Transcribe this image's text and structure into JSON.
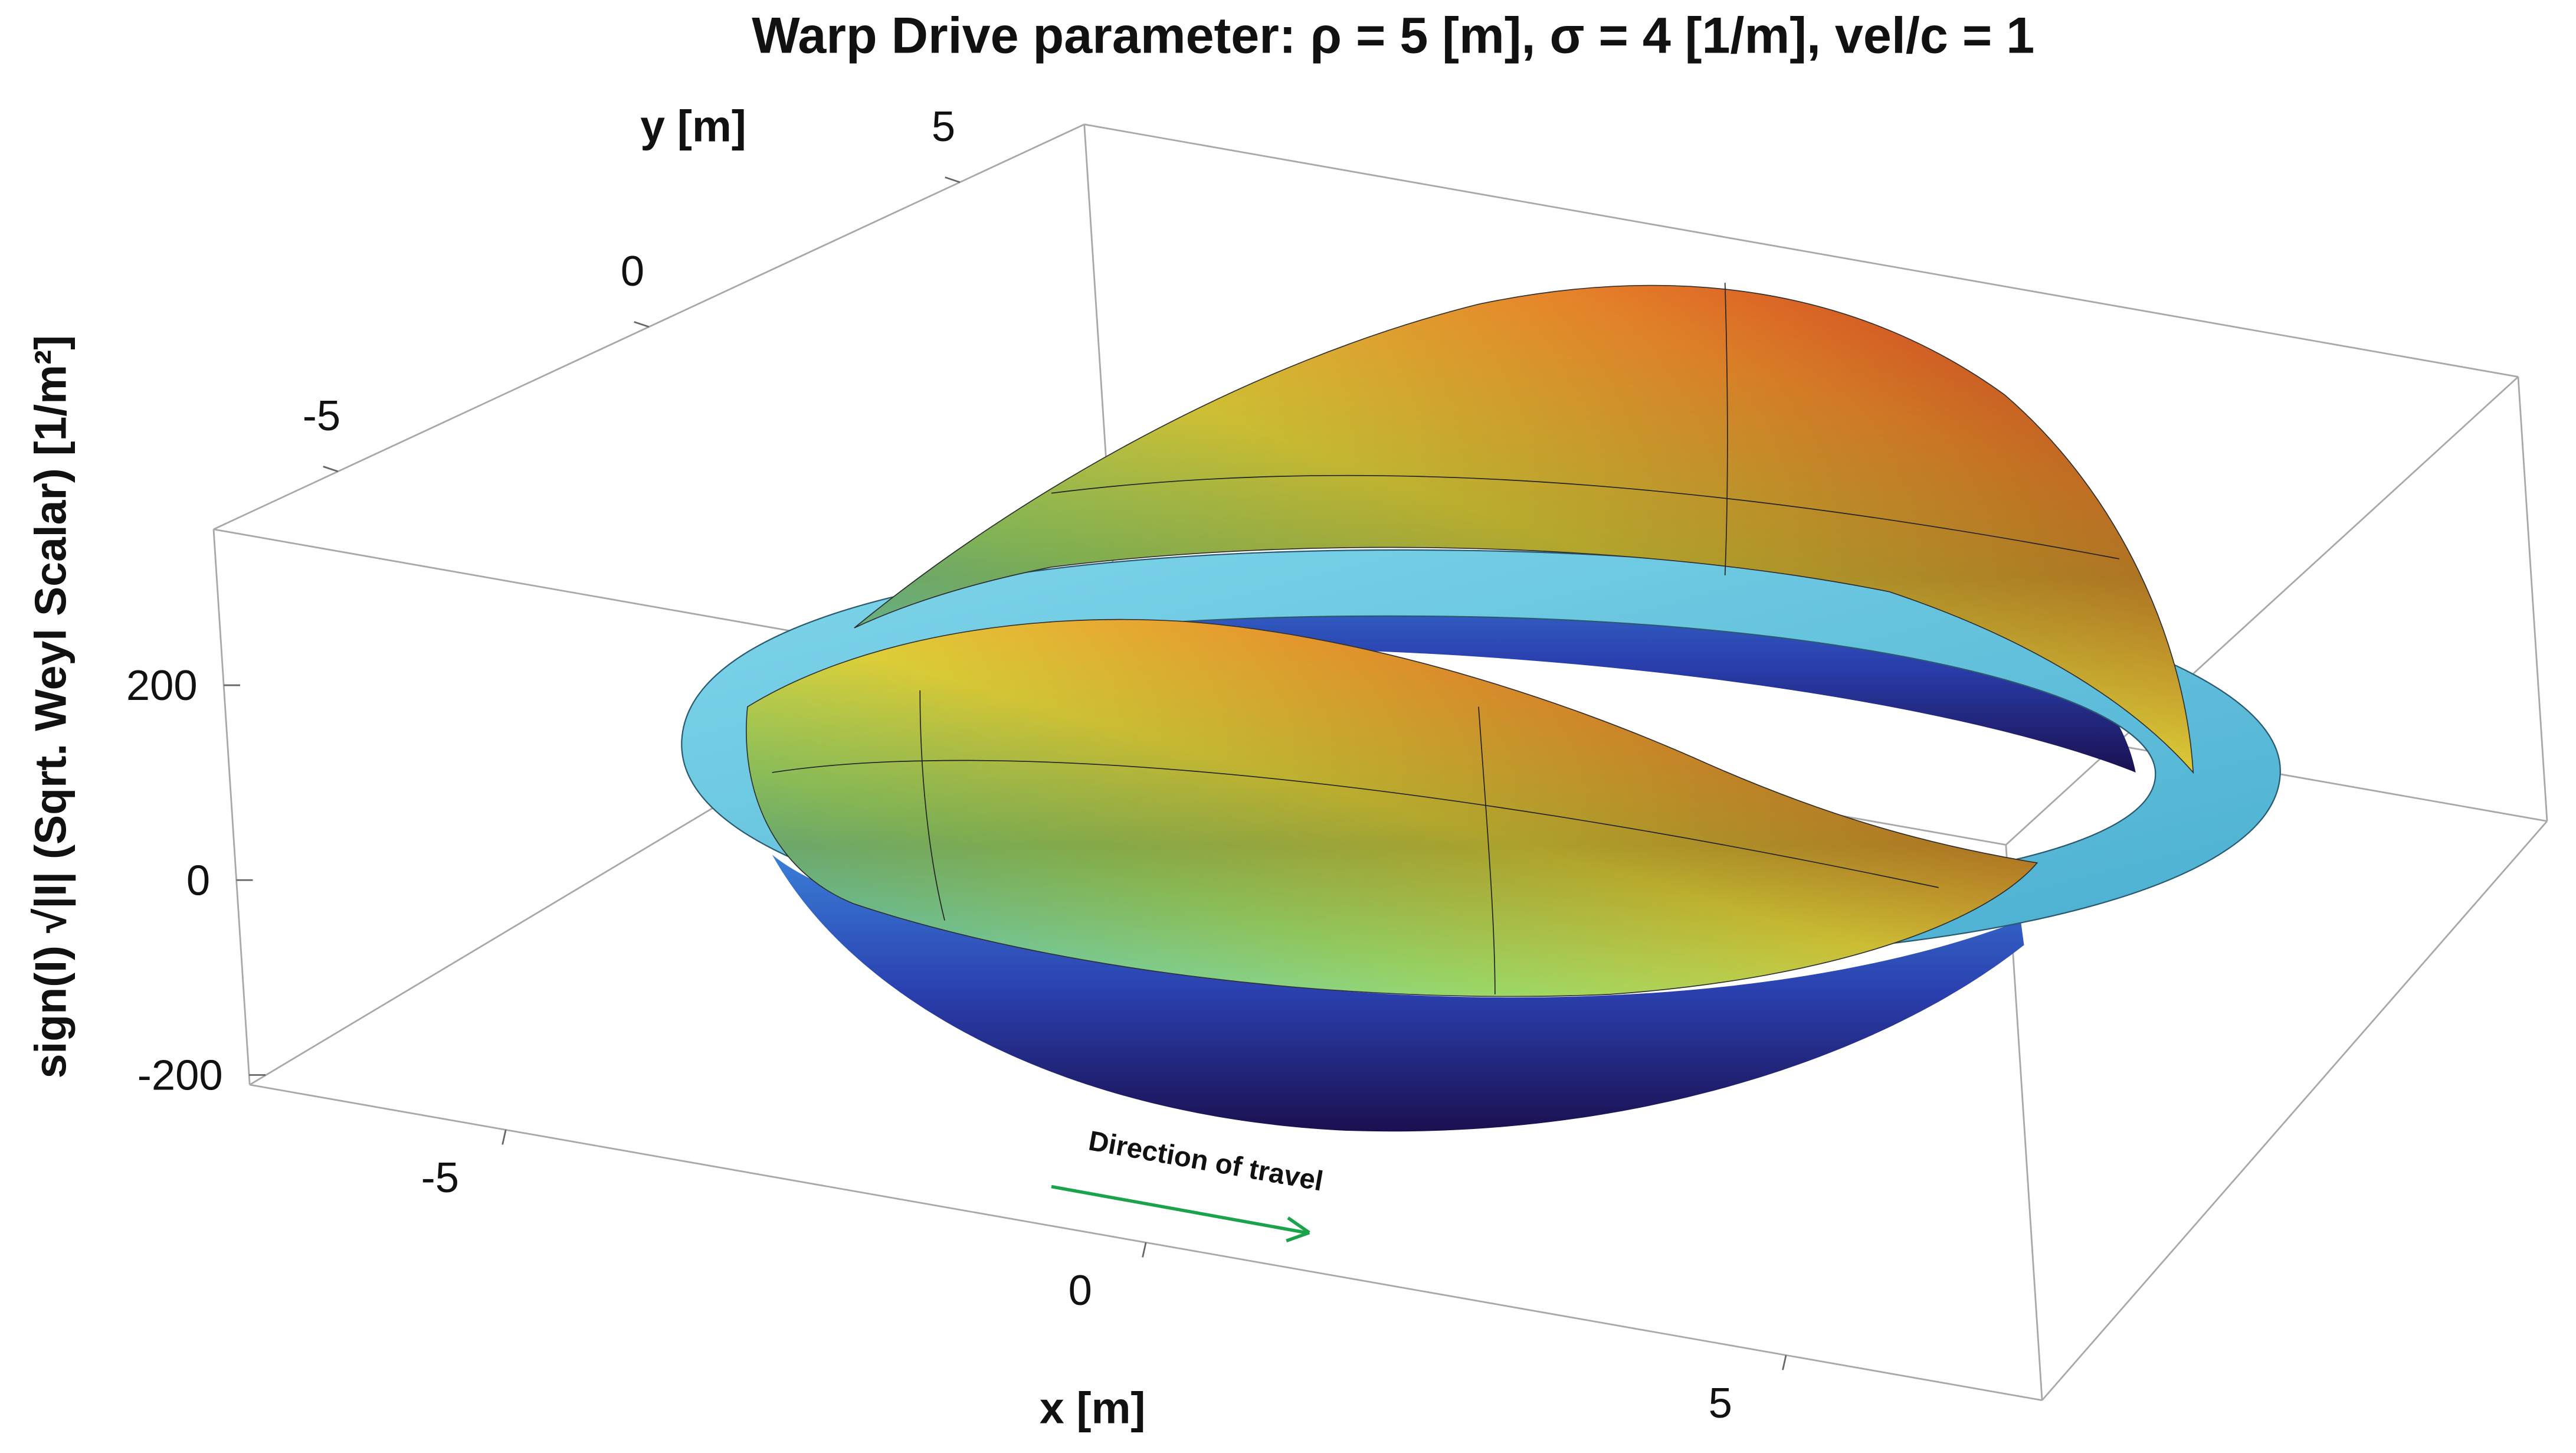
{
  "chart_data": {
    "type": "surface3d",
    "title": "Warp Drive parameter: ρ = 5 [m], σ = 4 [1/m], vel/c = 1",
    "x_label": "x [m]",
    "y_label": "y [m]",
    "z_label": "sign(I) √|I| (Sqrt. Weyl Scalar) [1/m²]",
    "annotation": "Direction of travel",
    "xlim": [
      -7,
      7
    ],
    "ylim": [
      -7,
      7
    ],
    "zlim": [
      -210,
      360
    ],
    "xticks": [
      -5,
      0,
      5
    ],
    "yticks": [
      -5,
      0,
      5
    ],
    "zticks": [
      -200,
      0,
      200
    ]
  }
}
